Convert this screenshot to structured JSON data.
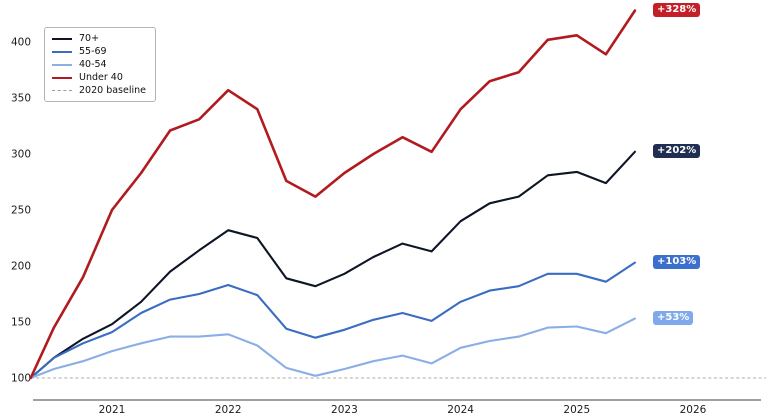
{
  "chart_data": {
    "type": "line",
    "title": "",
    "xlabel": "",
    "ylabel": "",
    "grid": false,
    "legend_position": "top-left",
    "x_ticks": [
      "2021",
      "2022",
      "2023",
      "2024",
      "2025",
      "2026"
    ],
    "y_ticks": [
      100,
      150,
      200,
      250,
      300,
      350,
      400
    ],
    "ylim": [
      100,
      430
    ],
    "xlim": [
      2020.3,
      2026.6
    ],
    "baseline": {
      "label": "2020 baseline",
      "value": 100,
      "color": "#ababab",
      "style": "dashed"
    },
    "x": [
      2020.3,
      2020.5,
      2020.75,
      2021.0,
      2021.25,
      2021.5,
      2021.75,
      2022.0,
      2022.25,
      2022.5,
      2022.75,
      2023.0,
      2023.25,
      2023.5,
      2023.75,
      2024.0,
      2024.25,
      2024.5,
      2024.75,
      2025.0,
      2025.25,
      2025.5
    ],
    "series": [
      {
        "name": "70+",
        "color": "#0e1626",
        "badge_color": "#202e52",
        "end_label": "+202%",
        "values": [
          100,
          118,
          135,
          148,
          168,
          195,
          214,
          232,
          225,
          189,
          182,
          193,
          208,
          220,
          213,
          240,
          256,
          262,
          281,
          284,
          274,
          302
        ]
      },
      {
        "name": "55-69",
        "color": "#3a6cc2",
        "badge_color": "#3b70cf",
        "end_label": "+103%",
        "values": [
          100,
          118,
          131,
          141,
          158,
          170,
          175,
          183,
          174,
          144,
          136,
          143,
          152,
          158,
          151,
          168,
          178,
          182,
          193,
          193,
          186,
          203
        ]
      },
      {
        "name": "40-54",
        "color": "#8aaee6",
        "badge_color": "#7fa9ea",
        "end_label": "+53%",
        "values": [
          100,
          108,
          115,
          124,
          131,
          137,
          137,
          139,
          129,
          109,
          102,
          108,
          115,
          120,
          113,
          127,
          133,
          137,
          145,
          146,
          140,
          153
        ]
      },
      {
        "name": "Under 40",
        "color": "#b11b1f",
        "badge_color": "#c41f27",
        "end_label": "+328%",
        "values": [
          100,
          145,
          190,
          250,
          283,
          321,
          331,
          357,
          340,
          276,
          262,
          283,
          300,
          315,
          302,
          340,
          365,
          373,
          402,
          406,
          389,
          428
        ]
      }
    ],
    "legend_entries": [
      "70+",
      "55-69",
      "40-54",
      "Under 40",
      "2020 baseline"
    ]
  }
}
